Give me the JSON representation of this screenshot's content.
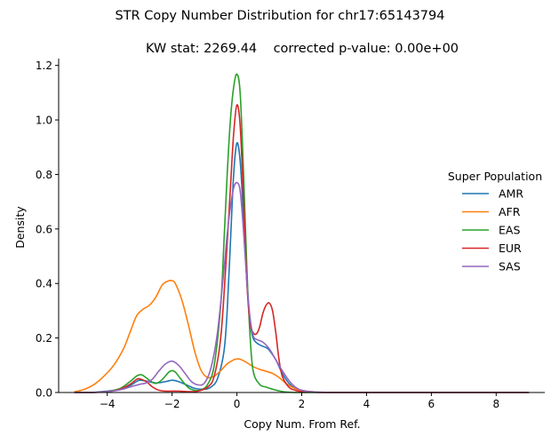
{
  "figure_title": "STR Copy Number Distribution for chr17:65143794",
  "chart_data": {
    "type": "line",
    "title": "KW stat: 2269.44    corrected p-value: 0.00e+00",
    "xlabel": "Copy Num. From Ref.",
    "ylabel": "Density",
    "xlim": [
      -5.5,
      9.5
    ],
    "ylim": [
      0,
      1.225
    ],
    "xticks": [
      -4,
      -2,
      0,
      2,
      4,
      6,
      8
    ],
    "xtick_labels": [
      "−4",
      "−2",
      "0",
      "2",
      "4",
      "6",
      "8"
    ],
    "yticks": [
      0.0,
      0.2,
      0.4,
      0.6,
      0.8,
      1.0,
      1.2
    ],
    "ytick_labels": [
      "0.0",
      "0.2",
      "0.4",
      "0.6",
      "0.8",
      "1.0",
      "1.2"
    ],
    "grid": false,
    "legend": {
      "title": "Super Population",
      "placement": "right"
    },
    "series": [
      {
        "name": "AMR",
        "color": "#1f77b4",
        "x": [
          -5,
          -4.5,
          -4,
          -3.6,
          -3.3,
          -3.1,
          -3.0,
          -2.8,
          -2.5,
          -2.2,
          -2.0,
          -1.8,
          -1.5,
          -1.3,
          -1.0,
          -0.8,
          -0.6,
          -0.4,
          -0.3,
          -0.2,
          -0.1,
          0.0,
          0.1,
          0.2,
          0.3,
          0.4,
          0.5,
          0.7,
          0.9,
          1.0,
          1.2,
          1.4,
          1.6,
          1.8,
          2.0,
          2.3,
          2.6,
          3.0,
          4.0,
          6.0,
          8.0,
          9.0
        ],
        "y": [
          0.0,
          0.0,
          0.005,
          0.012,
          0.025,
          0.04,
          0.045,
          0.042,
          0.035,
          0.04,
          0.045,
          0.04,
          0.025,
          0.015,
          0.012,
          0.02,
          0.05,
          0.15,
          0.3,
          0.55,
          0.8,
          0.915,
          0.85,
          0.65,
          0.42,
          0.27,
          0.2,
          0.175,
          0.165,
          0.155,
          0.12,
          0.07,
          0.035,
          0.015,
          0.008,
          0.003,
          0.001,
          0.0,
          0.0,
          0.0,
          0.0,
          0.0
        ]
      },
      {
        "name": "AFR",
        "color": "#ff7f0e",
        "x": [
          -5,
          -4.7,
          -4.4,
          -4.1,
          -3.8,
          -3.5,
          -3.3,
          -3.1,
          -2.9,
          -2.7,
          -2.5,
          -2.3,
          -2.1,
          -2.0,
          -1.9,
          -1.7,
          -1.5,
          -1.3,
          -1.1,
          -0.9,
          -0.7,
          -0.5,
          -0.3,
          -0.1,
          0.0,
          0.1,
          0.3,
          0.5,
          0.7,
          0.9,
          1.1,
          1.3,
          1.5,
          1.7,
          1.9,
          2.2,
          2.5,
          3.0,
          4.0,
          6.0,
          8.0,
          9.0
        ],
        "y": [
          0.003,
          0.012,
          0.03,
          0.06,
          0.1,
          0.16,
          0.22,
          0.28,
          0.305,
          0.32,
          0.35,
          0.395,
          0.41,
          0.41,
          0.4,
          0.34,
          0.25,
          0.15,
          0.08,
          0.055,
          0.06,
          0.08,
          0.105,
          0.12,
          0.123,
          0.122,
          0.11,
          0.095,
          0.085,
          0.078,
          0.07,
          0.055,
          0.035,
          0.02,
          0.01,
          0.004,
          0.001,
          0.0,
          0.0,
          0.0,
          0.0,
          0.0
        ]
      },
      {
        "name": "EAS",
        "color": "#2ca02c",
        "x": [
          -5,
          -4.5,
          -4,
          -3.6,
          -3.3,
          -3.1,
          -3.0,
          -2.9,
          -2.7,
          -2.5,
          -2.3,
          -2.1,
          -2.0,
          -1.9,
          -1.7,
          -1.5,
          -1.3,
          -1.1,
          -0.9,
          -0.7,
          -0.5,
          -0.4,
          -0.3,
          -0.2,
          -0.1,
          0.0,
          0.1,
          0.2,
          0.3,
          0.4,
          0.5,
          0.7,
          0.9,
          1.1,
          1.3,
          1.5,
          1.8,
          2.2,
          3.0,
          5.0,
          9.0
        ],
        "y": [
          0.0,
          0.0,
          0.004,
          0.015,
          0.04,
          0.06,
          0.065,
          0.063,
          0.045,
          0.033,
          0.048,
          0.075,
          0.08,
          0.075,
          0.045,
          0.018,
          0.008,
          0.01,
          0.03,
          0.1,
          0.32,
          0.55,
          0.8,
          1.0,
          1.12,
          1.168,
          1.1,
          0.82,
          0.48,
          0.22,
          0.08,
          0.03,
          0.02,
          0.012,
          0.006,
          0.002,
          0.0,
          0.0,
          0.0,
          0.0,
          0.0
        ]
      },
      {
        "name": "EUR",
        "color": "#d62728",
        "x": [
          -5,
          -4.5,
          -4,
          -3.6,
          -3.3,
          -3.1,
          -3.0,
          -2.8,
          -2.6,
          -2.4,
          -2.2,
          -2.0,
          -1.8,
          -1.5,
          -1.2,
          -0.9,
          -0.7,
          -0.5,
          -0.35,
          -0.2,
          -0.1,
          0.0,
          0.1,
          0.2,
          0.3,
          0.4,
          0.5,
          0.6,
          0.7,
          0.8,
          0.9,
          1.0,
          1.1,
          1.2,
          1.3,
          1.4,
          1.6,
          1.8,
          2.0,
          2.3,
          3.0,
          5.0,
          9.0
        ],
        "y": [
          0.0,
          0.0,
          0.003,
          0.012,
          0.03,
          0.048,
          0.05,
          0.04,
          0.02,
          0.008,
          0.005,
          0.005,
          0.005,
          0.003,
          0.005,
          0.02,
          0.06,
          0.2,
          0.45,
          0.75,
          0.95,
          1.055,
          0.98,
          0.72,
          0.42,
          0.26,
          0.22,
          0.215,
          0.24,
          0.29,
          0.32,
          0.328,
          0.3,
          0.22,
          0.12,
          0.06,
          0.02,
          0.008,
          0.003,
          0.001,
          0.0,
          0.0,
          0.0
        ]
      },
      {
        "name": "SAS",
        "color": "#9467bd",
        "x": [
          -5,
          -4.5,
          -4,
          -3.6,
          -3.3,
          -3.0,
          -2.8,
          -2.6,
          -2.4,
          -2.2,
          -2.0,
          -1.8,
          -1.6,
          -1.4,
          -1.2,
          -1.0,
          -0.8,
          -0.6,
          -0.4,
          -0.3,
          -0.2,
          -0.1,
          0.0,
          0.1,
          0.2,
          0.3,
          0.4,
          0.5,
          0.6,
          0.8,
          1.0,
          1.2,
          1.4,
          1.6,
          1.8,
          2.0,
          2.3,
          3.0,
          5.0,
          9.0
        ],
        "y": [
          0.0,
          0.0,
          0.003,
          0.01,
          0.02,
          0.03,
          0.035,
          0.05,
          0.08,
          0.105,
          0.115,
          0.1,
          0.07,
          0.04,
          0.028,
          0.035,
          0.09,
          0.22,
          0.45,
          0.58,
          0.68,
          0.75,
          0.77,
          0.74,
          0.6,
          0.42,
          0.28,
          0.21,
          0.195,
          0.185,
          0.16,
          0.12,
          0.08,
          0.045,
          0.02,
          0.008,
          0.002,
          0.0,
          0.0,
          0.0
        ]
      }
    ]
  }
}
